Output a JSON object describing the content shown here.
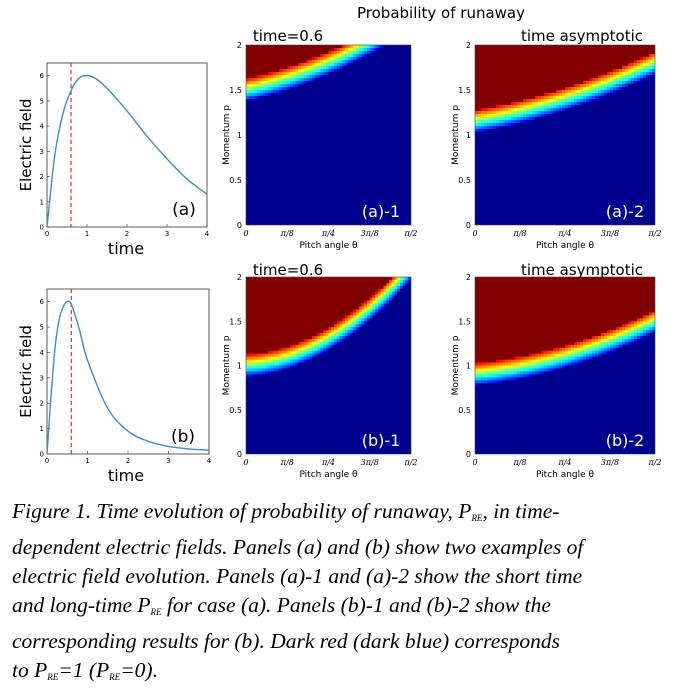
{
  "figure": {
    "suptitle": "Probability of runaway",
    "line_panels": [
      {
        "id": "a",
        "tag": "(a)",
        "ylabel": "Electric field",
        "xlabel": "time",
        "xticks": [
          "0",
          "1",
          "2",
          "3",
          "4"
        ],
        "yticks": [
          "0",
          "1",
          "2",
          "3",
          "4",
          "5",
          "6"
        ]
      },
      {
        "id": "b",
        "tag": "(b)",
        "ylabel": "Electric field",
        "xlabel": "time",
        "xticks": [
          "0",
          "1",
          "2",
          "3",
          "4"
        ],
        "yticks": [
          "0",
          "1",
          "2",
          "3",
          "4",
          "5",
          "6"
        ]
      }
    ],
    "heat_panels": [
      {
        "id": "a1",
        "title": "time=0.6",
        "tag": "(a)-1",
        "ylabel": "Momentum p",
        "xlabel": "Pitch angle θ"
      },
      {
        "id": "a2",
        "title": "time asymptotic",
        "tag": "(a)-2",
        "ylabel": "Momentum p",
        "xlabel": "Pitch angle θ"
      },
      {
        "id": "b1",
        "title": "time=0.6",
        "tag": "(b)-1",
        "ylabel": "Momentum p",
        "xlabel": "Pitch angle θ"
      },
      {
        "id": "b2",
        "title": "time asymptotic",
        "tag": "(b)-2",
        "ylabel": "Momentum p",
        "xlabel": "Pitch angle θ"
      }
    ],
    "heat_xticks": [
      "0",
      "π/8",
      "π/4",
      "3π/8",
      "π/2"
    ],
    "heat_yticks": [
      "0",
      "0.5",
      "1",
      "1.5",
      "2"
    ]
  },
  "chart_data": [
    {
      "type": "line",
      "panel": "(a)",
      "xlim": [
        0,
        4
      ],
      "ylim": [
        0,
        6.5
      ],
      "x": [
        0,
        0.2,
        0.4,
        0.6,
        0.8,
        1.0,
        1.2,
        1.5,
        2.0,
        2.5,
        3.0,
        3.5,
        4.0
      ],
      "y": [
        0,
        2.9,
        4.5,
        5.4,
        5.9,
        6.0,
        5.9,
        5.5,
        4.6,
        3.6,
        2.7,
        1.9,
        1.3
      ],
      "marker_x": 0.6,
      "marker_color": "#e0311f",
      "line_color": "#3a8fc8"
    },
    {
      "type": "line",
      "panel": "(b)",
      "xlim": [
        0,
        4
      ],
      "ylim": [
        0,
        6.5
      ],
      "x": [
        0,
        0.1,
        0.2,
        0.3,
        0.4,
        0.5,
        0.6,
        0.8,
        1.0,
        1.5,
        2.0,
        2.5,
        3.0,
        3.5,
        4.0
      ],
      "y": [
        0,
        2.3,
        4.2,
        5.3,
        5.8,
        6.0,
        5.9,
        4.9,
        3.7,
        1.8,
        0.9,
        0.5,
        0.3,
        0.2,
        0.15
      ],
      "marker_x": 0.6,
      "marker_color": "#e0311f",
      "line_color": "#3a8fc8"
    },
    {
      "type": "heatmap",
      "panel": "(a)-1",
      "xlim": [
        0,
        1.5708
      ],
      "ylim": [
        0,
        2
      ],
      "boundary_p": [
        1.5,
        1.8,
        2.3
      ],
      "edge_width": 0.12
    },
    {
      "type": "heatmap",
      "panel": "(a)-2",
      "xlim": [
        0,
        1.5708
      ],
      "ylim": [
        0,
        2
      ],
      "boundary_p": [
        1.15,
        1.4,
        1.8
      ],
      "edge_width": 0.12
    },
    {
      "type": "heatmap",
      "panel": "(b)-1",
      "xlim": [
        0,
        1.5708
      ],
      "ylim": [
        0,
        2
      ],
      "boundary_p": [
        1.0,
        1.3,
        2.1
      ],
      "edge_width": 0.12
    },
    {
      "type": "heatmap",
      "panel": "(b)-2",
      "xlim": [
        0,
        1.5708
      ],
      "ylim": [
        0,
        2
      ],
      "boundary_p": [
        0.9,
        1.1,
        1.5
      ],
      "edge_width": 0.12
    }
  ],
  "caption": {
    "lines": [
      [
        "Figure 1. Time evolution of probability of runaway, P",
        "RE",
        ", in time-"
      ],
      [
        "dependent electric fields. Panels (a) and (b) show two examples of"
      ],
      [
        "electric field evolution. Panels (a)-1 and (a)-2 show the short time"
      ],
      [
        "and long-time P",
        "RE",
        " for case (a). Panels (b)-1 and (b)-2 show the"
      ],
      [
        "corresponding results for (b). Dark red (dark blue) corresponds"
      ],
      [
        "to P",
        "RE",
        "=1 (P",
        "RE",
        "=0)."
      ]
    ]
  }
}
